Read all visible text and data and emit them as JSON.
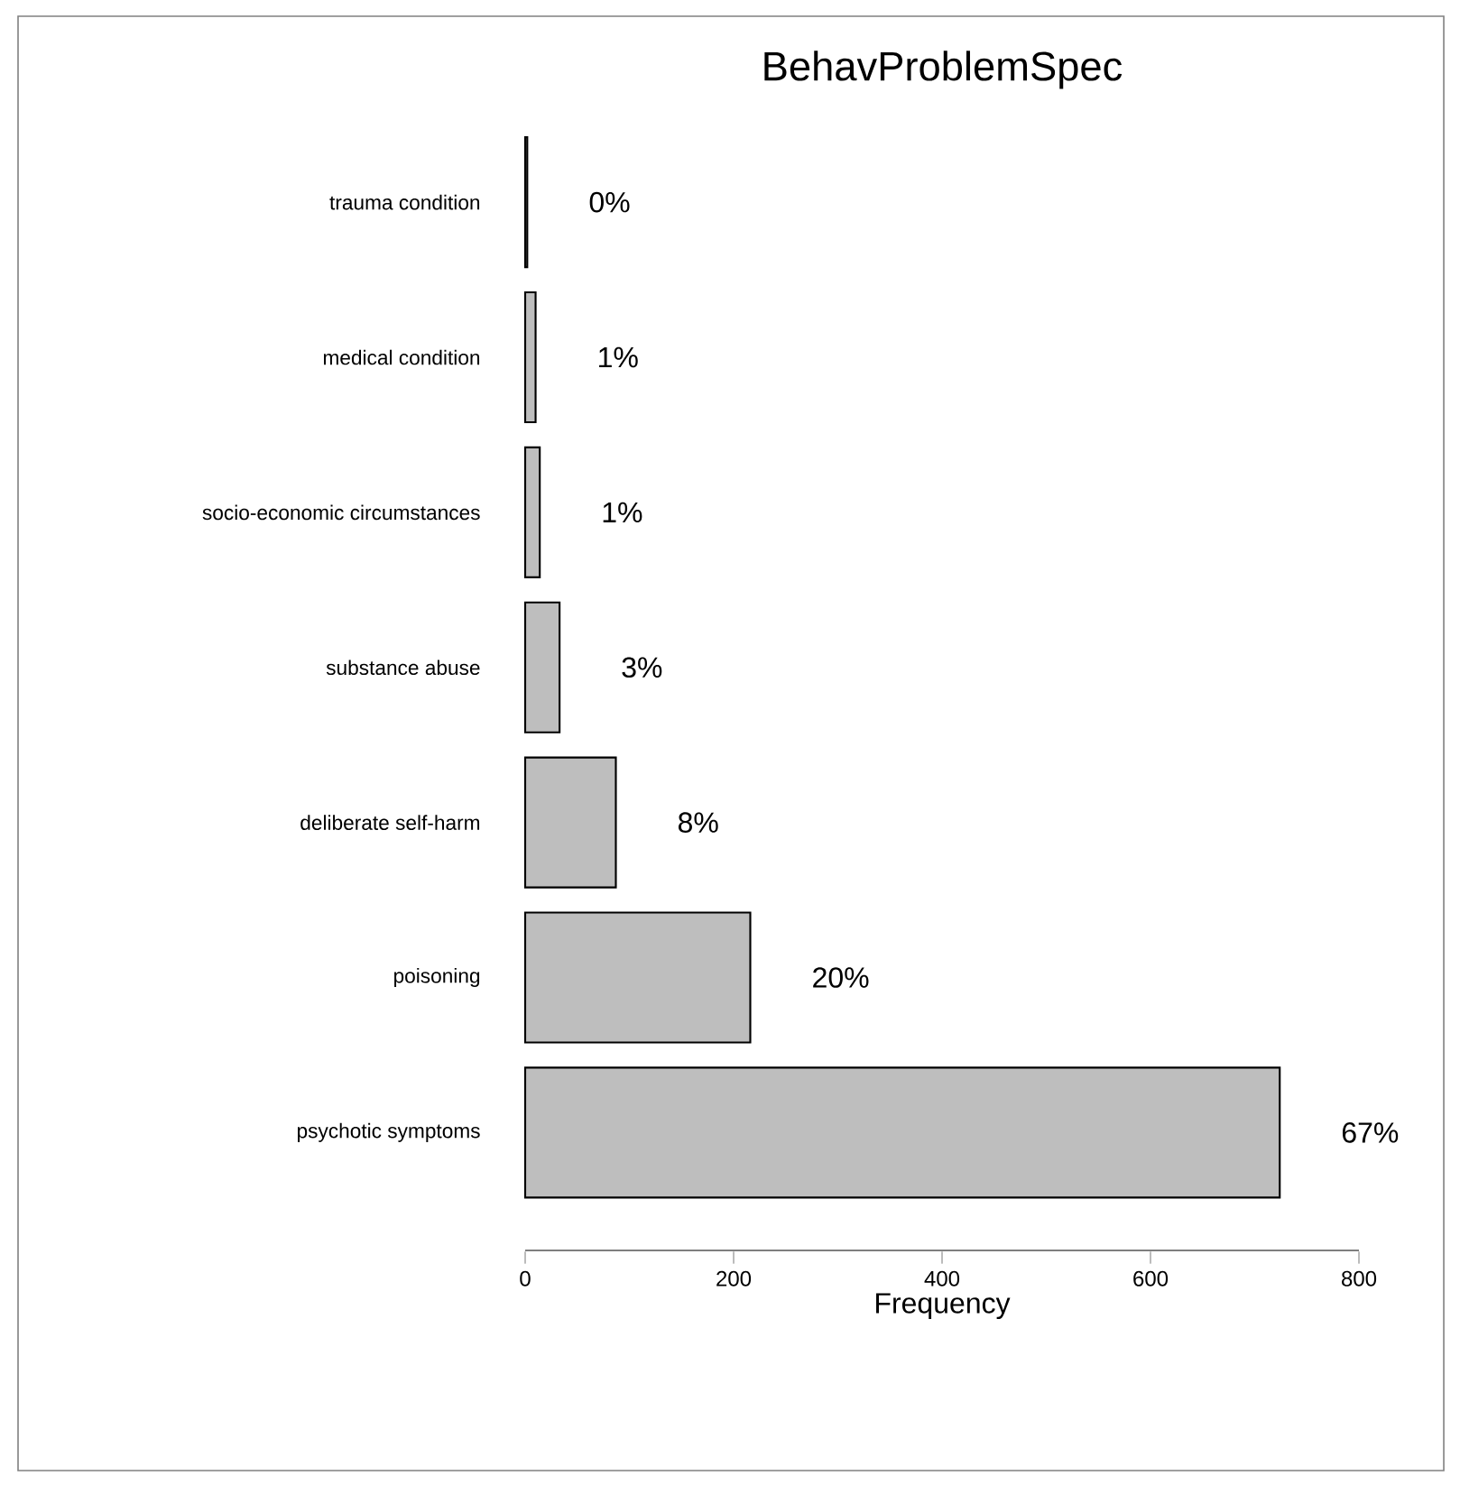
{
  "chart_data": {
    "type": "bar",
    "orientation": "horizontal",
    "title": "BehavProblemSpec",
    "xlabel": "Frequency",
    "categories": [
      "trauma condition",
      "medical condition",
      "socio-economic circumstances",
      "substance abuse",
      "deliberate self-harm",
      "poisoning",
      "psychotic symptoms"
    ],
    "values": [
      2,
      10,
      14,
      33,
      87,
      216,
      724
    ],
    "annotations": [
      {
        "text": "0%",
        "x": 2,
        "y": "trauma condition"
      },
      {
        "text": "1%",
        "x": 10,
        "y": "medical condition"
      },
      {
        "text": "1%",
        "x": 14,
        "y": "socio-economic circumstances"
      },
      {
        "text": "3%",
        "x": 33,
        "y": "substance abuse"
      },
      {
        "text": "8%",
        "x": 87,
        "y": "deliberate self-harm"
      },
      {
        "text": "20%",
        "x": 216,
        "y": "poisoning"
      },
      {
        "text": "67%",
        "x": 724,
        "y": "psychotic symptoms"
      }
    ],
    "color": "#bebebe",
    "xlim": [
      0,
      800
    ],
    "xticks": [
      0,
      200,
      400,
      600,
      800
    ]
  }
}
